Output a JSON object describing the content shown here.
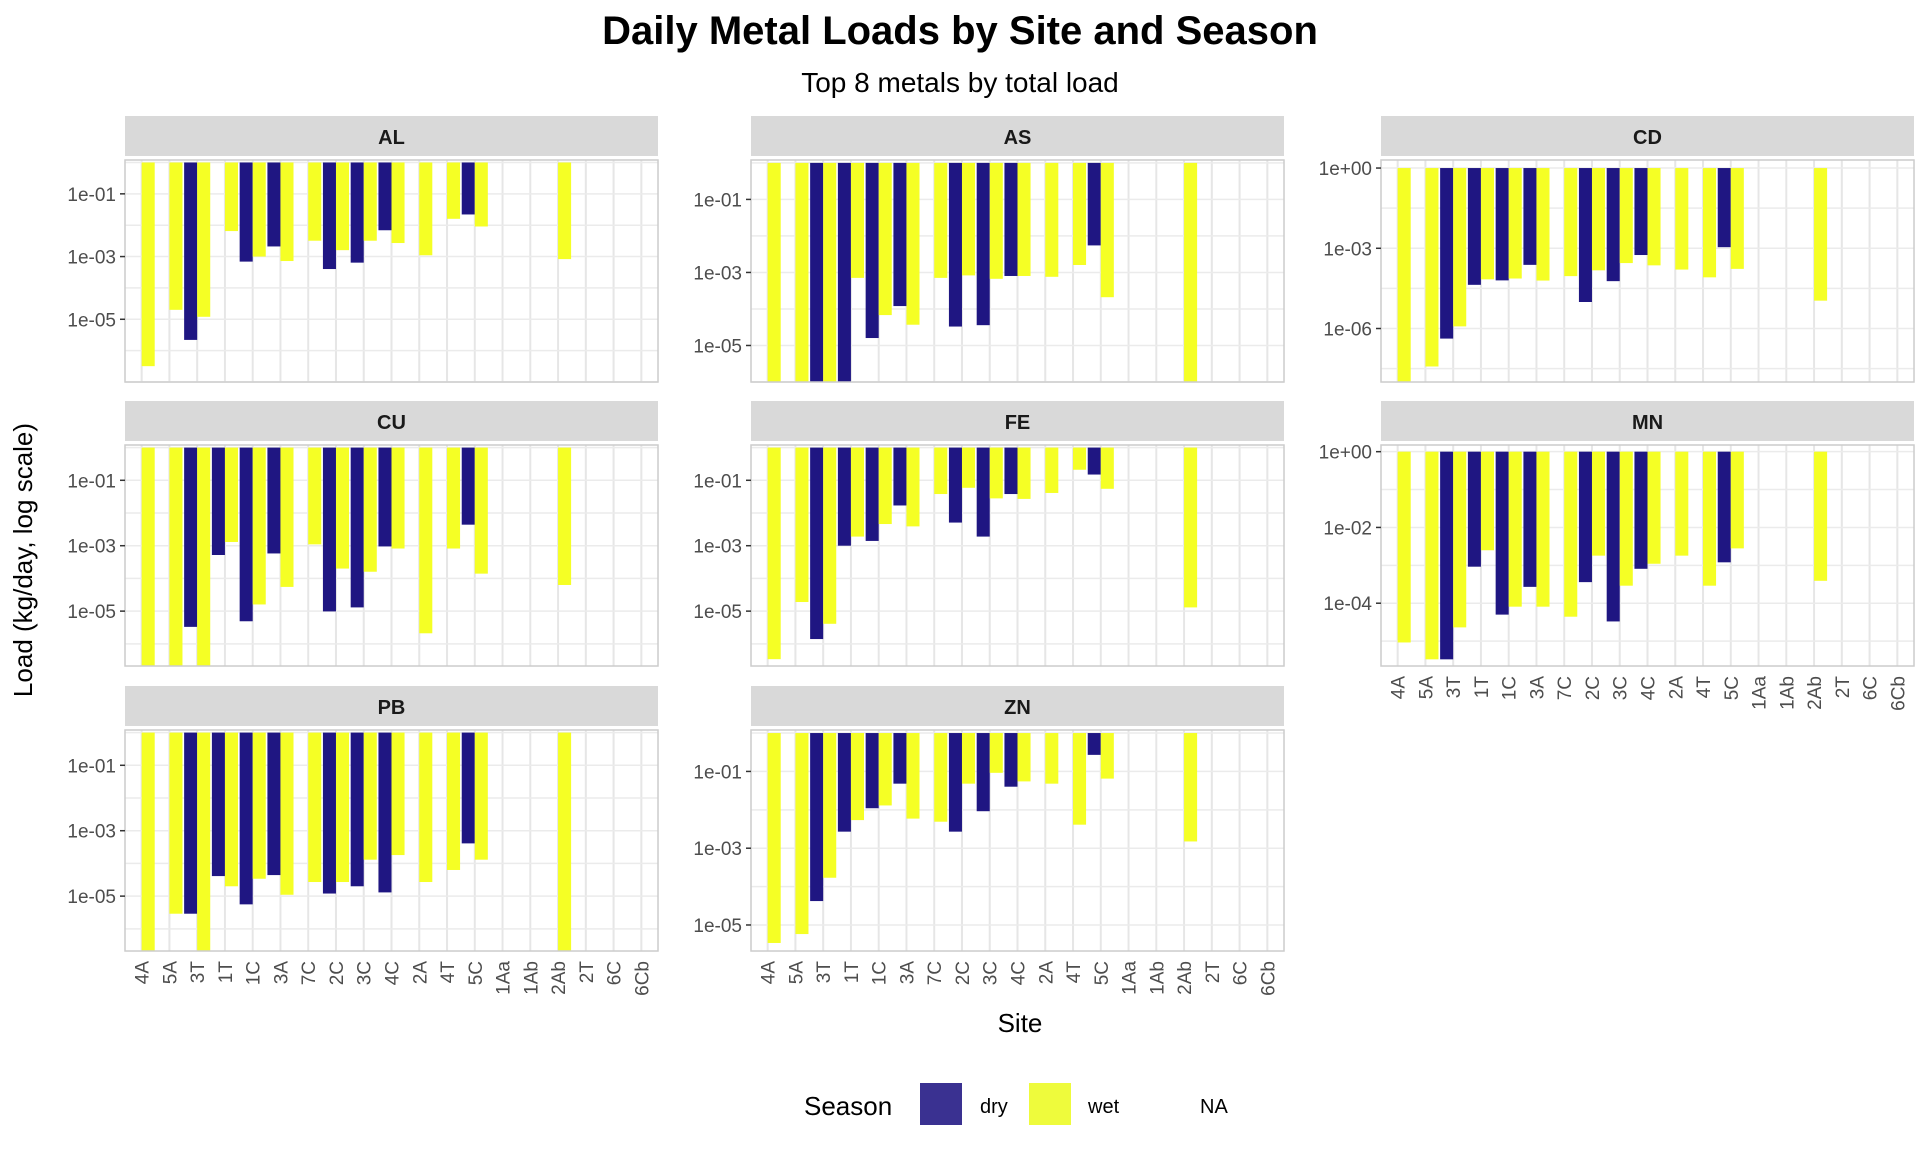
{
  "chart_data": {
    "type": "bar",
    "title": "Daily Metal Loads by Site and Season",
    "subtitle": "Top 8 metals by total load",
    "xlabel": "Site",
    "ylabel": "Load (kg/day, log scale)",
    "y_scale": "log10",
    "grid": true,
    "legend_position": "bottom",
    "legend": {
      "title": "Season",
      "items": [
        {
          "label": "dry",
          "color": "#3a3191"
        },
        {
          "label": "wet",
          "color": "#eefb3c"
        },
        {
          "label": "NA",
          "color": null
        }
      ]
    },
    "colors": {
      "dry": "#1f1682",
      "wet": "#f5ff25"
    },
    "strip_bg": "#d9d9d9",
    "categories": [
      "4A",
      "5A",
      "3T",
      "1T",
      "1C",
      "3A",
      "7C",
      "2C",
      "3C",
      "4C",
      "2A",
      "4T",
      "5C",
      "1Aa",
      "1Ab",
      "2Ab",
      "2T",
      "6C",
      "6Cb"
    ],
    "panels": [
      {
        "label": "AL",
        "ylim": [
          1e-07,
          1.2
        ],
        "yticks": [
          {
            "value": 0.1,
            "label": "1e-01"
          },
          {
            "value": 0.001,
            "label": "1e-03"
          },
          {
            "value": 1e-05,
            "label": "1e-05"
          }
        ],
        "dry": [
          null,
          null,
          2.2e-06,
          null,
          0.00069,
          0.0021,
          null,
          0.0004,
          0.00064,
          0.0069,
          null,
          null,
          0.022,
          null,
          null,
          null,
          null,
          null,
          null
        ],
        "wet": [
          3.2e-07,
          2e-05,
          1.2e-05,
          0.0065,
          0.001,
          0.00072,
          0.0032,
          0.0016,
          0.0032,
          0.0027,
          0.0011,
          0.016,
          0.0091,
          null,
          null,
          0.00083,
          null,
          null,
          null
        ]
      },
      {
        "label": "AS",
        "ylim": [
          1e-06,
          1.2
        ],
        "yticks": [
          {
            "value": 0.1,
            "label": "1e-01"
          },
          {
            "value": 0.001,
            "label": "1e-03"
          },
          {
            "value": 1e-05,
            "label": "1e-05"
          }
        ],
        "dry": [
          null,
          null,
          1e-06,
          1e-06,
          1.6e-05,
          0.00012,
          null,
          3.3e-05,
          3.6e-05,
          0.0008,
          null,
          null,
          0.0055,
          null,
          null,
          null,
          null,
          null,
          null
        ],
        "wet": [
          1e-06,
          1e-06,
          1e-06,
          0.00071,
          6.8e-05,
          3.7e-05,
          0.00071,
          0.00083,
          0.00067,
          0.0008,
          0.00076,
          0.0016,
          0.00021,
          null,
          null,
          1e-06,
          null,
          null,
          null
        ]
      },
      {
        "label": "CD",
        "ylim": [
          1e-08,
          2
        ],
        "yticks": [
          {
            "value": 1,
            "label": "1e+00"
          },
          {
            "value": 0.001,
            "label": "1e-03"
          },
          {
            "value": 1e-06,
            "label": "1e-06"
          }
        ],
        "dry": [
          null,
          null,
          4.2e-07,
          4.3e-05,
          6.3e-05,
          0.00024,
          null,
          9.8e-06,
          5.9e-05,
          0.00056,
          null,
          null,
          0.0011,
          null,
          null,
          null,
          null,
          null,
          null
        ],
        "wet": [
          1e-08,
          3.8e-08,
          1.2e-06,
          6.9e-05,
          7.4e-05,
          6.2e-05,
          9.1e-05,
          0.00015,
          0.00028,
          0.00023,
          0.00016,
          8.2e-05,
          0.00017,
          null,
          null,
          1.1e-05,
          null,
          null,
          null
        ]
      },
      {
        "label": "CU",
        "ylim": [
          2.1e-07,
          1.2
        ],
        "yticks": [
          {
            "value": 0.1,
            "label": "1e-01"
          },
          {
            "value": 0.001,
            "label": "1e-03"
          },
          {
            "value": 1e-05,
            "label": "1e-05"
          }
        ],
        "dry": [
          null,
          null,
          3.3e-06,
          0.00052,
          4.9e-06,
          0.00058,
          null,
          9.8e-06,
          1.3e-05,
          0.00095,
          null,
          null,
          0.0044,
          null,
          null,
          null,
          null,
          null,
          null
        ],
        "wet": [
          2.1e-07,
          2.1e-07,
          2.1e-07,
          0.0013,
          1.6e-05,
          5.5e-05,
          0.0011,
          0.0002,
          0.00016,
          0.00082,
          2.1e-06,
          0.00082,
          0.00014,
          null,
          null,
          6.3e-05,
          null,
          null,
          null
        ]
      },
      {
        "label": "FE",
        "ylim": [
          2.1e-07,
          1.2
        ],
        "yticks": [
          {
            "value": 0.1,
            "label": "1e-01"
          },
          {
            "value": 0.001,
            "label": "1e-03"
          },
          {
            "value": 1e-05,
            "label": "1e-05"
          }
        ],
        "dry": [
          null,
          null,
          1.4e-06,
          0.001,
          0.0014,
          0.017,
          null,
          0.0051,
          0.0019,
          0.038,
          null,
          null,
          0.15,
          null,
          null,
          null,
          null,
          null,
          null
        ],
        "wet": [
          3.4e-07,
          1.9e-05,
          4.1e-06,
          0.0019,
          0.0046,
          0.0039,
          0.038,
          0.059,
          0.028,
          0.027,
          0.041,
          0.21,
          0.055,
          null,
          null,
          1.3e-05,
          null,
          null,
          null
        ]
      },
      {
        "label": "MN",
        "ylim": [
          2.2e-06,
          1.5
        ],
        "yticks": [
          {
            "value": 1,
            "label": "1e+00"
          },
          {
            "value": 0.01,
            "label": "1e-02"
          },
          {
            "value": 0.0001,
            "label": "1e-04"
          }
        ],
        "dry": [
          null,
          null,
          3.3e-06,
          0.00092,
          5e-05,
          0.00027,
          null,
          0.00036,
          3.3e-05,
          0.00081,
          null,
          null,
          0.0012,
          null,
          null,
          null,
          null,
          null,
          null
        ],
        "wet": [
          9.2e-06,
          3.3e-06,
          2.3e-05,
          0.0025,
          8.1e-05,
          8.1e-05,
          4.4e-05,
          0.0018,
          0.00029,
          0.0011,
          0.0018,
          0.00029,
          0.0028,
          null,
          null,
          0.00039,
          null,
          null,
          null
        ]
      },
      {
        "label": "PB",
        "ylim": [
          2.1e-07,
          1.2
        ],
        "yticks": [
          {
            "value": 0.1,
            "label": "1e-01"
          },
          {
            "value": 0.001,
            "label": "1e-03"
          },
          {
            "value": 1e-05,
            "label": "1e-05"
          }
        ],
        "dry": [
          null,
          null,
          2.9e-06,
          4.1e-05,
          5.6e-06,
          4.4e-05,
          null,
          1.2e-05,
          2e-05,
          1.3e-05,
          null,
          null,
          0.00041,
          null,
          null,
          null,
          null,
          null,
          null
        ],
        "wet": [
          2.1e-07,
          2.9e-06,
          2.1e-07,
          2e-05,
          3.4e-05,
          1.1e-05,
          2.7e-05,
          2.7e-05,
          0.00013,
          0.00018,
          2.7e-05,
          6.3e-05,
          0.00013,
          null,
          null,
          2.1e-07,
          null,
          null,
          null
        ]
      },
      {
        "label": "ZN",
        "ylim": [
          2.1e-06,
          1.2
        ],
        "yticks": [
          {
            "value": 0.1,
            "label": "1e-01"
          },
          {
            "value": 0.001,
            "label": "1e-03"
          },
          {
            "value": 1e-05,
            "label": "1e-05"
          }
        ],
        "dry": [
          null,
          null,
          4.2e-05,
          0.0027,
          0.011,
          0.048,
          null,
          0.0027,
          0.0092,
          0.04,
          null,
          null,
          0.27,
          null,
          null,
          null,
          null,
          null,
          null
        ],
        "wet": [
          3.4e-06,
          5.8e-06,
          0.00017,
          0.0054,
          0.013,
          0.0059,
          0.0049,
          0.048,
          0.092,
          0.055,
          0.048,
          0.0041,
          0.065,
          null,
          null,
          0.0015,
          null,
          null,
          null
        ]
      }
    ]
  }
}
